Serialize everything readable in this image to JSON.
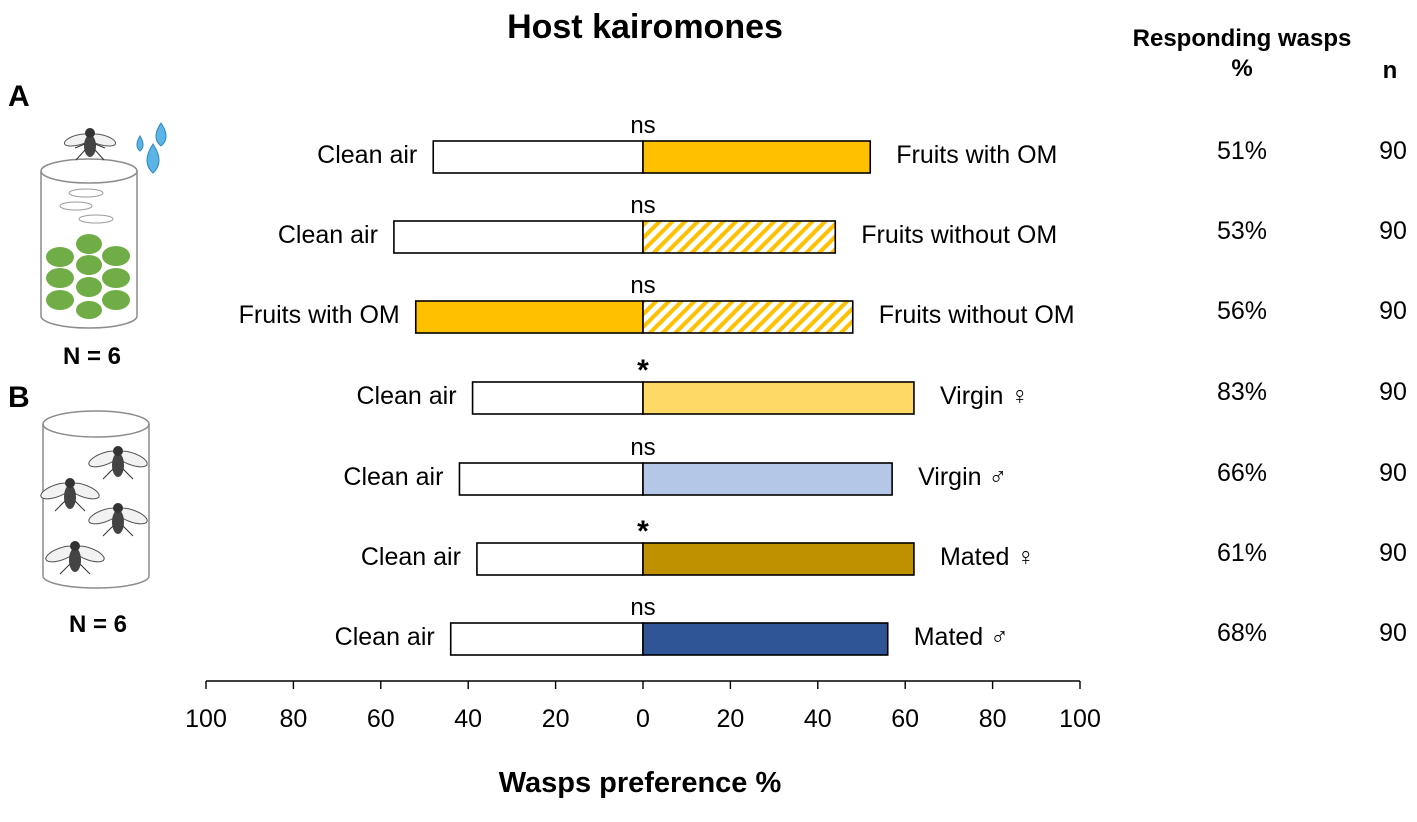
{
  "chart_data": {
    "type": "bar",
    "title": "Host kairomones",
    "xlabel": "Wasps preference %",
    "xlim": [
      -100,
      100
    ],
    "xticks": [
      100,
      80,
      60,
      40,
      20,
      0,
      20,
      40,
      60,
      80,
      100
    ],
    "panels": [
      {
        "label": "A",
        "sample_size": "N = 6"
      },
      {
        "label": "B",
        "sample_size": "N = 6"
      }
    ],
    "column_headers": {
      "responding": "Responding wasps %",
      "n": "n"
    },
    "rows": [
      {
        "panel": "A",
        "significance": "ns",
        "left_label": "Clean air",
        "left_value": 48,
        "left_color": "#ffffff",
        "left_pattern": "solid",
        "right_label": "Fruits with OM",
        "right_value": 52,
        "right_color": "#ffc000",
        "right_pattern": "solid",
        "responding": "51%",
        "n": "90"
      },
      {
        "panel": "A",
        "significance": "ns",
        "left_label": "Clean air",
        "left_value": 57,
        "left_color": "#ffffff",
        "left_pattern": "solid",
        "right_label": "Fruits without OM",
        "right_value": 44,
        "right_color": "#ffc000",
        "right_pattern": "hatched",
        "responding": "53%",
        "n": "90"
      },
      {
        "panel": "A",
        "significance": "ns",
        "left_label": "Fruits with OM",
        "left_value": 52,
        "left_color": "#ffc000",
        "left_pattern": "solid",
        "right_label": "Fruits without OM",
        "right_value": 48,
        "right_color": "#ffc000",
        "right_pattern": "hatched",
        "responding": "56%",
        "n": "90"
      },
      {
        "panel": "B",
        "significance": "*",
        "left_label": "Clean air",
        "left_value": 39,
        "left_color": "#ffffff",
        "left_pattern": "solid",
        "right_label": "Virgin ♀",
        "right_value": 62,
        "right_color": "#ffd966",
        "right_pattern": "solid",
        "responding": "83%",
        "n": "90"
      },
      {
        "panel": "B",
        "significance": "ns",
        "left_label": "Clean air",
        "left_value": 42,
        "left_color": "#ffffff",
        "left_pattern": "solid",
        "right_label": "Virgin ♂",
        "right_value": 57,
        "right_color": "#b4c7e7",
        "right_pattern": "solid",
        "responding": "66%",
        "n": "90"
      },
      {
        "panel": "B",
        "significance": "*",
        "left_label": "Clean air",
        "left_value": 38,
        "left_color": "#ffffff",
        "left_pattern": "solid",
        "right_label": "Mated ♀",
        "right_value": 62,
        "right_color": "#bf9000",
        "right_pattern": "solid",
        "responding": "61%",
        "n": "90"
      },
      {
        "panel": "B",
        "significance": "ns",
        "left_label": "Clean air",
        "left_value": 44,
        "left_color": "#ffffff",
        "left_pattern": "solid",
        "right_label": "Mated ♂",
        "right_value": 56,
        "right_color": "#2f5597",
        "right_pattern": "solid",
        "responding": "68%",
        "n": "90"
      }
    ]
  }
}
